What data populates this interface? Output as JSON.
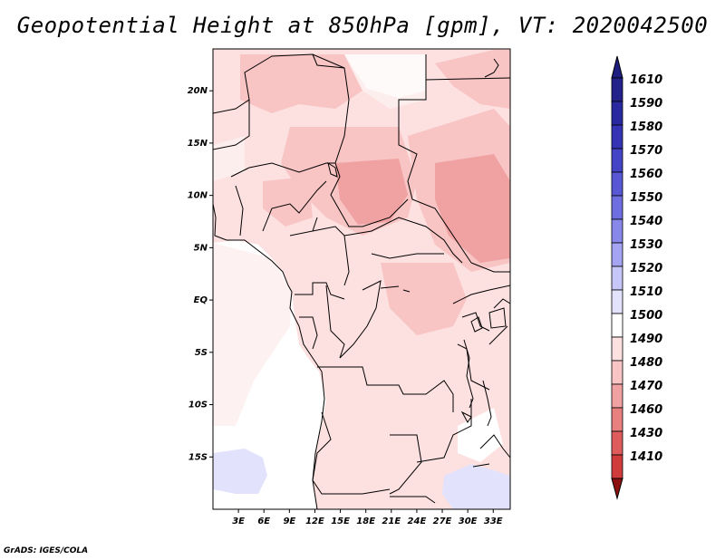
{
  "title": "Geopotential Height at 850hPa [gpm], VT: 2020042500",
  "footer": "GrADS: IGES/COLA",
  "map": {
    "variable": "Geopotential Height",
    "level": "850hPa",
    "units": "gpm",
    "valid_time": "2020042500",
    "lon_range": [
      0,
      35
    ],
    "lat_range": [
      -20,
      24
    ],
    "lon_ticks": [
      {
        "value": 3,
        "label": "3E"
      },
      {
        "value": 6,
        "label": "6E"
      },
      {
        "value": 9,
        "label": "9E"
      },
      {
        "value": 12,
        "label": "12E"
      },
      {
        "value": 15,
        "label": "15E"
      },
      {
        "value": 18,
        "label": "18E"
      },
      {
        "value": 21,
        "label": "21E"
      },
      {
        "value": 24,
        "label": "24E"
      },
      {
        "value": 27,
        "label": "27E"
      },
      {
        "value": 30,
        "label": "30E"
      },
      {
        "value": 33,
        "label": "33E"
      }
    ],
    "lat_ticks": [
      {
        "value": 20,
        "label": "20N"
      },
      {
        "value": 15,
        "label": "15N"
      },
      {
        "value": 10,
        "label": "10N"
      },
      {
        "value": 5,
        "label": "5N"
      },
      {
        "value": 0,
        "label": "EQ"
      },
      {
        "value": -5,
        "label": "5S"
      },
      {
        "value": -10,
        "label": "10S"
      },
      {
        "value": -15,
        "label": "15S"
      }
    ]
  },
  "colorbar": {
    "levels": [
      {
        "label": "1610",
        "color": "#22228a"
      },
      {
        "label": "1590",
        "color": "#2a2aa0"
      },
      {
        "label": "1580",
        "color": "#3434b4"
      },
      {
        "label": "1570",
        "color": "#4444c6"
      },
      {
        "label": "1560",
        "color": "#5858d4"
      },
      {
        "label": "1550",
        "color": "#6e6ee0"
      },
      {
        "label": "1540",
        "color": "#8888ea"
      },
      {
        "label": "1530",
        "color": "#a4a4f2"
      },
      {
        "label": "1520",
        "color": "#c6c6f8"
      },
      {
        "label": "1510",
        "color": "#e2e2fc"
      },
      {
        "label": "1500",
        "color": "#ffffff"
      },
      {
        "label": "1490",
        "color": "#fde0e0"
      },
      {
        "label": "1480",
        "color": "#f8c4c4"
      },
      {
        "label": "1470",
        "color": "#f0a2a2"
      },
      {
        "label": "1460",
        "color": "#e88080"
      },
      {
        "label": "1430",
        "color": "#de5c5c"
      },
      {
        "label": "1410",
        "color": "#d03c3c"
      },
      {
        "label": "",
        "color": "#b02020"
      },
      {
        "label": "",
        "color": "#8c1010"
      }
    ],
    "top_triangle_color": "#1e1e80",
    "bottom_triangle_color": "#8c1010"
  }
}
